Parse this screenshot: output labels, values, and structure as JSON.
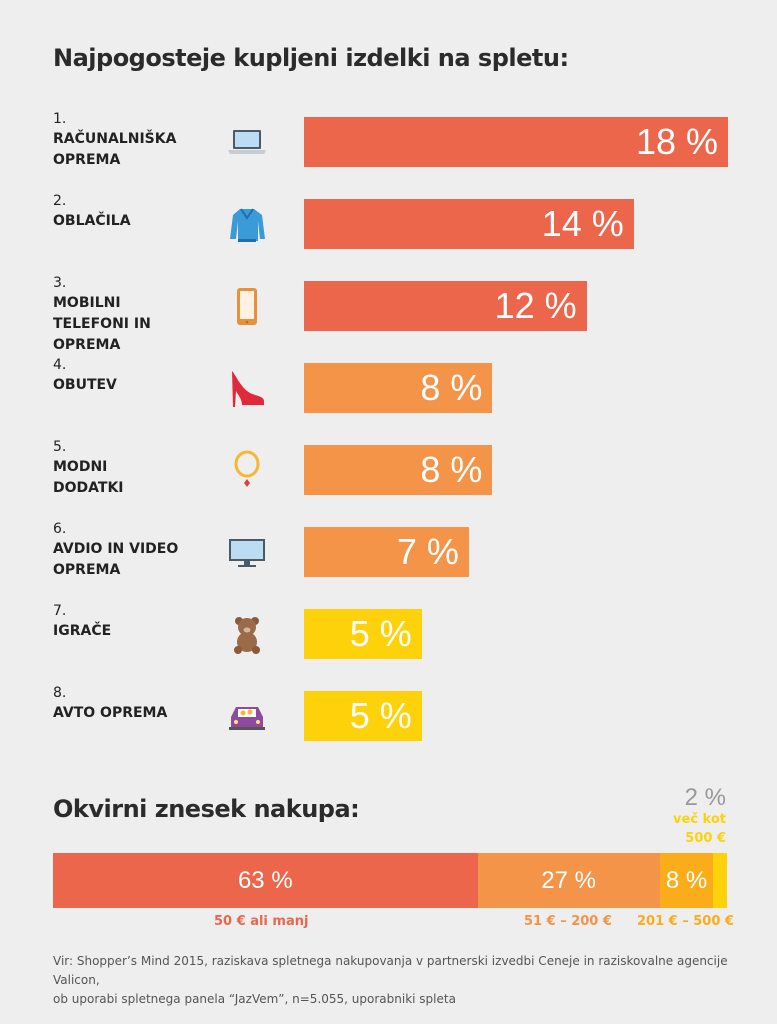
{
  "title": "Najpogosteje kupljeni izdelki na spletu:",
  "chart_data": [
    {
      "type": "bar",
      "orientation": "horizontal",
      "title": "Najpogosteje kupljeni izdelki na spletu:",
      "unit": "%",
      "categories": [
        {
          "rank": "1.",
          "label": "RAČUNALNIŠKA OPREMA",
          "value": 18,
          "display": "18 %",
          "icon": "laptop-icon",
          "color": "#ec664b"
        },
        {
          "rank": "2.",
          "label": "OBLAČILA",
          "value": 14,
          "display": "14 %",
          "icon": "sweater-icon",
          "color": "#ec664b"
        },
        {
          "rank": "3.",
          "label": "MOBILNI TELEFONI IN OPREMA",
          "value": 12,
          "display": "12 %",
          "icon": "phone-icon",
          "color": "#ec664b"
        },
        {
          "rank": "4.",
          "label": "OBUTEV",
          "value": 8,
          "display": "8 %",
          "icon": "high-heel-icon",
          "color": "#f39449"
        },
        {
          "rank": "5.",
          "label": "MODNI DODATKI",
          "value": 8,
          "display": "8 %",
          "icon": "necklace-icon",
          "color": "#f39449"
        },
        {
          "rank": "6.",
          "label": "AVDIO IN VIDEO OPREMA",
          "value": 7,
          "display": "7 %",
          "icon": "monitor-icon",
          "color": "#f39449"
        },
        {
          "rank": "7.",
          "label": "IGRAČE",
          "value": 5,
          "display": "5 %",
          "icon": "teddy-bear-icon",
          "color": "#fdd20a"
        },
        {
          "rank": "8.",
          "label": "AVTO OPREMA",
          "value": 5,
          "display": "5 %",
          "icon": "car-icon",
          "color": "#fdd20a"
        }
      ]
    },
    {
      "type": "bar",
      "orientation": "stacked-horizontal",
      "title": "Okvirni znesek nakupa:",
      "segments": [
        {
          "value": 63,
          "display": "63 %",
          "label": "50 € ali manj",
          "color": "#ec664b"
        },
        {
          "value": 27,
          "display": "27 %",
          "label": "51 € – 200 €",
          "color": "#f39449"
        },
        {
          "value": 8,
          "display": "8 %",
          "label": "201 € – 500 €",
          "color": "#fbac1b"
        },
        {
          "value": 2,
          "display": "2 %",
          "label_line1": "več kot",
          "label_line2": "500 €",
          "color": "#fdd20a"
        }
      ]
    }
  ],
  "source": {
    "line1": "Vir: Shopper’s Mind 2015, raziskava spletnega nakupovanja v partnerski izvedbi Ceneje in raziskovalne agencije Valicon,",
    "line2": "ob uporabi spletnega panela “JazVem”, n=5.055, uporabniki spleta"
  }
}
